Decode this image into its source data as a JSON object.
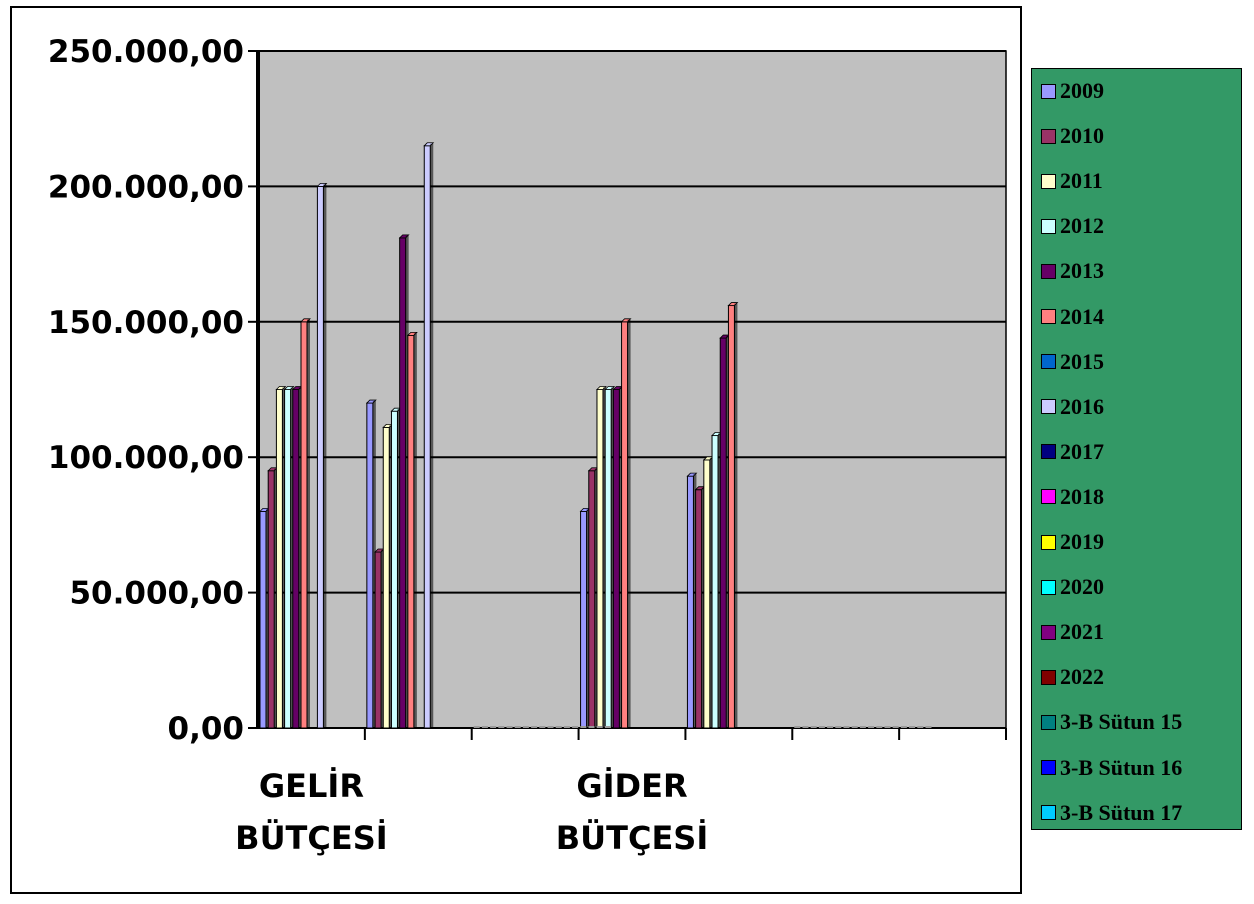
{
  "chart_data": {
    "type": "bar",
    "categories": [
      "GELİR BÜTÇESİ",
      "",
      "",
      "GİDER BÜTÇESİ",
      "",
      "",
      ""
    ],
    "category_label_lines": [
      [
        "GELİR",
        "BÜTÇESİ"
      ],
      [],
      [],
      [
        "GİDER",
        "BÜTÇESİ"
      ],
      [],
      [],
      []
    ],
    "ylim": [
      0,
      250000
    ],
    "yticks": [
      0,
      50000,
      100000,
      150000,
      200000,
      250000
    ],
    "ytick_labels": [
      "0,00",
      "50.000,00",
      "100.000,00",
      "150.000,00",
      "200.000,00",
      "250.000,00"
    ],
    "grid": true,
    "legend_position": "right",
    "plot_background": "#C0C0C0",
    "legend_background": "#339966",
    "series": [
      {
        "name": "2009",
        "color": "#9999FF",
        "values": [
          80000,
          120000,
          0,
          80000,
          93000,
          0,
          0
        ]
      },
      {
        "name": "2010",
        "color": "#993366",
        "values": [
          95000,
          65000,
          0,
          95000,
          88000,
          0,
          0
        ]
      },
      {
        "name": "2011",
        "color": "#FFFFCC",
        "values": [
          125000,
          111000,
          0,
          125000,
          99000,
          0,
          0
        ]
      },
      {
        "name": "2012",
        "color": "#CCFFFF",
        "values": [
          125000,
          117000,
          0,
          125000,
          108000,
          0,
          0
        ]
      },
      {
        "name": "2013",
        "color": "#660066",
        "values": [
          125000,
          181000,
          0,
          125000,
          144000,
          0,
          0
        ]
      },
      {
        "name": "2014",
        "color": "#FF8080",
        "values": [
          150000,
          145000,
          0,
          150000,
          156000,
          0,
          0
        ]
      },
      {
        "name": "2015",
        "color": "#0066CC",
        "values": [
          0,
          0,
          0,
          0,
          0,
          0,
          0
        ]
      },
      {
        "name": "2016",
        "color": "#CCCCFF",
        "values": [
          200000,
          215000,
          0,
          0,
          0,
          0,
          0
        ]
      },
      {
        "name": "2017",
        "color": "#000080",
        "values": [
          0,
          0,
          0,
          0,
          0,
          0,
          0
        ]
      },
      {
        "name": "2018",
        "color": "#FF00FF",
        "values": [
          0,
          0,
          0,
          0,
          0,
          0,
          0
        ]
      },
      {
        "name": "2019",
        "color": "#FFFF00",
        "values": [
          0,
          0,
          0,
          0,
          0,
          0,
          0
        ]
      },
      {
        "name": "2020",
        "color": "#00FFFF",
        "values": [
          0,
          0,
          0,
          0,
          0,
          0,
          0
        ]
      },
      {
        "name": "2021",
        "color": "#800080",
        "values": [
          0,
          0,
          0,
          0,
          0,
          0,
          0
        ]
      },
      {
        "name": "2022",
        "color": "#800000",
        "values": [
          0,
          0,
          0,
          0,
          0,
          0,
          0
        ]
      },
      {
        "name": "3-B Sütun 15",
        "color": "#008080",
        "values": [
          0,
          0,
          0,
          0,
          0,
          0,
          0
        ]
      },
      {
        "name": "3-B Sütun 16",
        "color": "#0000FF",
        "values": [
          0,
          0,
          0,
          0,
          0,
          0,
          0
        ]
      },
      {
        "name": "3-B Sütun 17",
        "color": "#00CCFF",
        "values": [
          0,
          0,
          0,
          0,
          0,
          0,
          0
        ]
      }
    ]
  }
}
